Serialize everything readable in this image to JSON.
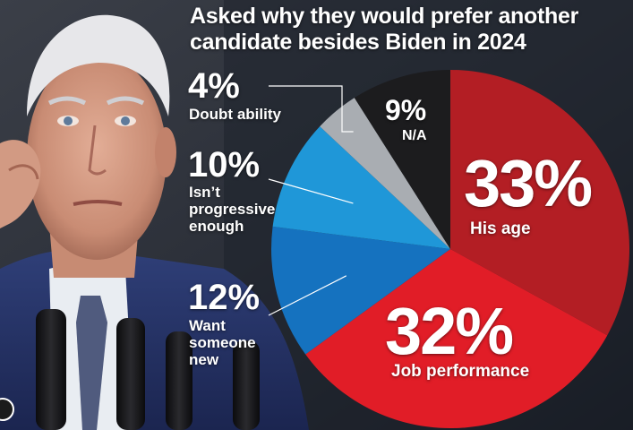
{
  "chart_data": {
    "type": "pie",
    "title_lines": [
      "Asked why they would prefer another",
      "candidate besides Biden in 2024"
    ],
    "slices": [
      {
        "label": "His age",
        "value": 33,
        "display": "33%",
        "color": "#b31e24"
      },
      {
        "label": "Job performance",
        "value": 32,
        "display": "32%",
        "color": "#e11d27"
      },
      {
        "label": "Want someone new",
        "value": 12,
        "display": "12%",
        "color": "#1572bf"
      },
      {
        "label": "Isn’t progressive enough",
        "value": 10,
        "display": "10%",
        "color": "#1f97d8"
      },
      {
        "label": "Doubt ability",
        "value": 4,
        "display": "4%",
        "color": "#a9adb2"
      },
      {
        "label": "N/A",
        "value": 9,
        "display": "9%",
        "color": "#1c1c1e"
      }
    ],
    "legend": "none"
  },
  "labels": {
    "his_age": {
      "pct": "33%",
      "lines": [
        "His age"
      ]
    },
    "job_performance": {
      "pct": "32%",
      "lines": [
        "Job performance"
      ]
    },
    "want_new": {
      "pct": "12%",
      "lines": [
        "Want",
        "someone",
        "new"
      ]
    },
    "not_progressive": {
      "pct": "10%",
      "lines": [
        "Isn’t",
        "progressive",
        "enough"
      ]
    },
    "doubt_ability": {
      "pct": "4%",
      "lines": [
        "Doubt ability"
      ]
    },
    "na": {
      "pct": "9%",
      "lines": [
        "N/A"
      ]
    }
  },
  "colors": {
    "suit": "#2b3a6e",
    "shirt": "#e9edf2",
    "skin": "#d9a38c"
  }
}
